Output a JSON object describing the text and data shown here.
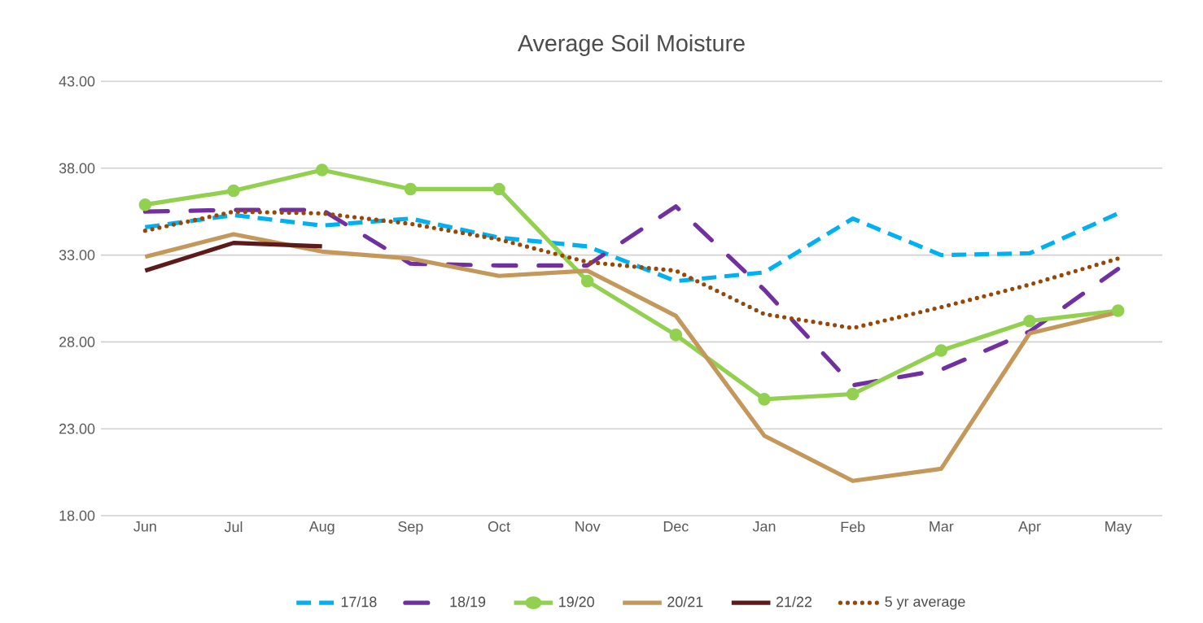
{
  "chart_data": {
    "type": "line",
    "title": "Average Soil Moisture",
    "categories": [
      "Jun",
      "Jul",
      "Aug",
      "Sep",
      "Oct",
      "Nov",
      "Dec",
      "Jan",
      "Feb",
      "Mar",
      "Apr",
      "May"
    ],
    "series": [
      {
        "name": "17/18",
        "color": "#00b0f0",
        "line_style": "dashed",
        "values": [
          34.6,
          35.3,
          34.7,
          35.1,
          34.0,
          33.5,
          31.5,
          32.0,
          35.1,
          33.0,
          33.1,
          35.4
        ]
      },
      {
        "name": "18/19",
        "color": "#7030a0",
        "line_style": "dashdot",
        "values": [
          35.5,
          35.6,
          35.6,
          32.5,
          32.4,
          32.4,
          35.8,
          31.0,
          25.5,
          26.4,
          28.6,
          32.2
        ]
      },
      {
        "name": "19/20",
        "color": "#92d050",
        "line_style": "solid",
        "marker": "circle",
        "values": [
          35.9,
          36.7,
          37.9,
          36.8,
          36.8,
          31.5,
          28.4,
          24.7,
          25.0,
          27.5,
          29.2,
          29.8
        ]
      },
      {
        "name": "20/21",
        "color": "#c4975a",
        "line_style": "solid",
        "values": [
          32.9,
          34.2,
          33.2,
          32.8,
          31.8,
          32.1,
          29.5,
          22.6,
          20.0,
          20.7,
          28.5,
          29.7
        ]
      },
      {
        "name": "21/22",
        "color": "#5c1a1a",
        "line_style": "solid",
        "values": [
          32.1,
          33.7,
          33.5,
          null,
          null,
          null,
          null,
          null,
          null,
          null,
          null,
          null
        ]
      },
      {
        "name": "5 yr average",
        "color": "#974806",
        "line_style": "dotted",
        "values": [
          34.4,
          35.5,
          35.4,
          34.8,
          33.9,
          32.6,
          32.1,
          29.6,
          28.8,
          30.0,
          31.3,
          32.8
        ]
      }
    ],
    "ylim": [
      18,
      43
    ],
    "yticks": [
      {
        "value": 18,
        "label": "18.00"
      },
      {
        "value": 23,
        "label": "23.00"
      },
      {
        "value": 28,
        "label": "28.00"
      },
      {
        "value": 33,
        "label": "33.00"
      },
      {
        "value": 38,
        "label": "38.00"
      },
      {
        "value": 43,
        "label": "43.00"
      }
    ],
    "grid": "y",
    "legend": "bottom"
  }
}
